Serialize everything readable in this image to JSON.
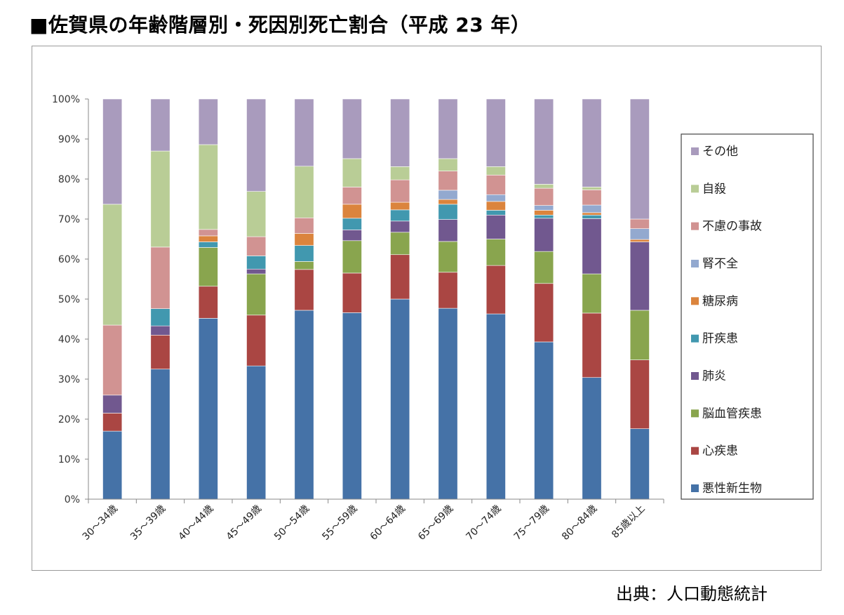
{
  "page_title": "■佐賀県の年齢階層別・死因別死亡割合（平成 23 年）",
  "source_note": "出典：人口動態統計",
  "chart_data": {
    "type": "bar",
    "stacked": true,
    "percent": true,
    "categories": [
      "30～34歳",
      "35～39歳",
      "40～44歳",
      "45～49歳",
      "50～54歳",
      "55～59歳",
      "60～64歳",
      "65～69歳",
      "70～74歳",
      "75～79歳",
      "80～84歳",
      "85歳以上"
    ],
    "ylim": [
      0,
      100
    ],
    "y_ticks": [
      "0%",
      "10%",
      "20%",
      "30%",
      "40%",
      "50%",
      "60%",
      "70%",
      "80%",
      "90%",
      "100%"
    ],
    "legend_position": "right",
    "series": [
      {
        "name": "悪性新生物",
        "color": "#4572A7",
        "values": [
          17,
          32.5,
          45.2,
          33.3,
          47.2,
          46.6,
          50,
          47.7,
          46.3,
          39.3,
          30.4,
          17.6
        ]
      },
      {
        "name": "心疾患",
        "color": "#AA4643",
        "values": [
          4.5,
          8.5,
          8,
          12.7,
          10.2,
          9.9,
          11.1,
          9,
          12.1,
          14.6,
          16.1,
          17.2
        ]
      },
      {
        "name": "脳血管疾患",
        "color": "#89A54E",
        "values": [
          0,
          0,
          9.7,
          10.3,
          2,
          8.1,
          5.6,
          7.7,
          6.6,
          8,
          9.8,
          12.4
        ]
      },
      {
        "name": "肺炎",
        "color": "#71588F",
        "values": [
          4.5,
          2.3,
          0,
          1.2,
          0,
          2.7,
          2.8,
          5.5,
          6,
          8.3,
          13.8,
          17.1
        ]
      },
      {
        "name": "肝疾患",
        "color": "#4198AF",
        "values": [
          0,
          4.3,
          1.4,
          3.3,
          4,
          2.9,
          2.8,
          3.8,
          1.2,
          0.8,
          0.9,
          0
        ]
      },
      {
        "name": "糖尿病",
        "color": "#DB843D",
        "values": [
          0,
          0,
          1.5,
          0,
          3,
          3.5,
          1.9,
          1.2,
          2.2,
          1.2,
          0.6,
          0.6
        ]
      },
      {
        "name": "腎不全",
        "color": "#93A9CF",
        "values": [
          0,
          0,
          0,
          0,
          0,
          0,
          0,
          2.3,
          1.7,
          1.2,
          1.9,
          2.7
        ]
      },
      {
        "name": "不慮の事故",
        "color": "#D19392",
        "values": [
          17.5,
          15.4,
          1.6,
          4.8,
          3.9,
          4.3,
          5.6,
          4.8,
          4.9,
          4.3,
          3.8,
          2.4
        ]
      },
      {
        "name": "自殺",
        "color": "#B9CD96",
        "values": [
          30.2,
          24,
          21.2,
          11.3,
          12.9,
          7.1,
          3.3,
          3.1,
          2.1,
          1,
          0.7,
          0
        ]
      },
      {
        "name": "その他",
        "color": "#A99BBD",
        "values": [
          26.3,
          13,
          11.4,
          23.1,
          16.8,
          14.9,
          16.9,
          14.9,
          16.9,
          21.3,
          22,
          30
        ]
      }
    ]
  }
}
